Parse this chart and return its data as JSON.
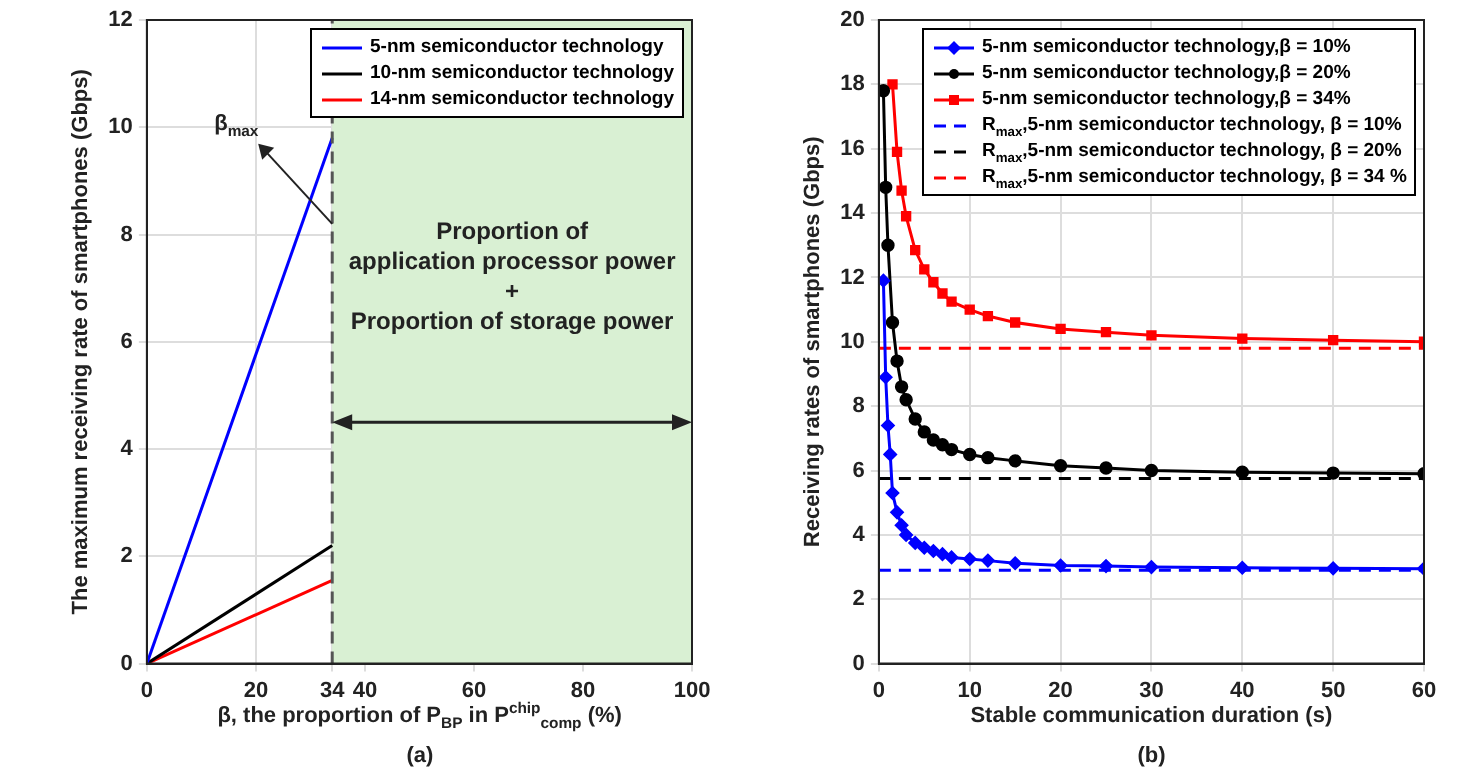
{
  "chart_data": [
    {
      "type": "line",
      "xlabel": "β, the proportion of P$_{BP}$ in P$^{chip}$$_{comp}$ (%)",
      "ylabel": "The maximum receiving rate of smartphones (Gbps)",
      "series": [
        {
          "name": "5-nm semiconductor technology",
          "color": "#0000ff",
          "x": [
            0,
            34
          ],
          "values": [
            0,
            9.8
          ]
        },
        {
          "name": "10-nm semiconductor technology",
          "color": "#000000",
          "x": [
            0,
            34
          ],
          "values": [
            0,
            2.2
          ]
        },
        {
          "name": "14-nm semiconductor technology",
          "color": "#ff0000",
          "x": [
            0,
            34
          ],
          "values": [
            0,
            1.55
          ]
        }
      ],
      "xlim": [
        0,
        100
      ],
      "xticks": [
        0,
        20,
        34,
        40,
        60,
        80,
        100
      ],
      "ylim": [
        0,
        12
      ],
      "yticks": [
        0,
        2,
        4,
        6,
        8,
        10,
        12
      ],
      "ref_lines": [
        {
          "axis": "x",
          "value": 34,
          "color": "#555555",
          "line_style": "dashed"
        }
      ],
      "bands": [
        {
          "axis": "x",
          "from": 34,
          "to": 100,
          "label": "Proportion of\napplication processor power\n+\nProportion of storage power",
          "color": "#d9f0d3"
        }
      ],
      "annotations": [
        {
          "text": "β$_{max}$",
          "x": 34,
          "y": 8.2
        },
        "(a)"
      ],
      "grid": true,
      "legend": "top right",
      "marker": "none",
      "line_style": "solid"
    },
    {
      "type": "line",
      "xlabel": "Stable communication duration (s)",
      "ylabel": "Receiving rates of smartphones (Gbps)",
      "series": [
        {
          "name": "5-nm semiconductor technology,β = 10%",
          "color": "#0000ff",
          "marker": "diamond",
          "x": [
            0.5,
            0.75,
            1,
            1.25,
            1.5,
            2,
            2.5,
            3,
            4,
            5,
            6,
            7,
            8,
            10,
            12,
            15,
            20,
            25,
            30,
            40,
            50,
            60
          ],
          "values": [
            11.9,
            8.9,
            7.4,
            6.5,
            5.3,
            4.7,
            4.3,
            4.0,
            3.75,
            3.6,
            3.5,
            3.4,
            3.3,
            3.25,
            3.2,
            3.12,
            3.05,
            3.03,
            3.0,
            2.98,
            2.96,
            2.95
          ]
        },
        {
          "name": "5-nm semiconductor technology,β = 20%",
          "color": "#000000",
          "marker": "circle",
          "x": [
            0.5,
            0.75,
            1,
            1.5,
            2,
            2.5,
            3,
            4,
            5,
            6,
            7,
            8,
            10,
            12,
            15,
            20,
            25,
            30,
            40,
            50,
            60
          ],
          "values": [
            17.8,
            14.8,
            13.0,
            10.6,
            9.4,
            8.6,
            8.2,
            7.6,
            7.2,
            6.95,
            6.8,
            6.65,
            6.5,
            6.4,
            6.3,
            6.15,
            6.08,
            6.0,
            5.95,
            5.92,
            5.9
          ]
        },
        {
          "name": "5-nm semiconductor technology,β = 34%",
          "color": "#ff0000",
          "marker": "square",
          "x": [
            1.5,
            2,
            2.5,
            3,
            4,
            5,
            6,
            7,
            8,
            10,
            12,
            15,
            20,
            25,
            30,
            40,
            50,
            60
          ],
          "values": [
            18.0,
            15.9,
            14.7,
            13.9,
            12.85,
            12.25,
            11.85,
            11.5,
            11.25,
            11.0,
            10.8,
            10.6,
            10.4,
            10.3,
            10.2,
            10.1,
            10.05,
            10.0
          ]
        },
        {
          "name": "R$_{max}$,5-nm semiconductor technology, β = 10%",
          "color": "#0000ff",
          "marker": "none",
          "line_style": "dashed",
          "x": [
            0,
            60
          ],
          "values": [
            2.9,
            2.9
          ]
        },
        {
          "name": "R$_{max}$,5-nm semiconductor technology, β = 20%",
          "color": "#000000",
          "marker": "none",
          "line_style": "dashed",
          "x": [
            0,
            60
          ],
          "values": [
            5.75,
            5.75
          ]
        },
        {
          "name": "R$_{max}$,5-nm semiconductor technology, β = 34 %",
          "color": "#ff0000",
          "marker": "none",
          "line_style": "dashed",
          "x": [
            0,
            60
          ],
          "values": [
            9.8,
            9.8
          ]
        }
      ],
      "xlim": [
        0,
        60
      ],
      "xticks": [
        0,
        10,
        20,
        30,
        40,
        50,
        60
      ],
      "ylim": [
        0,
        20
      ],
      "yticks": [
        0,
        2,
        4,
        6,
        8,
        10,
        12,
        14,
        16,
        18,
        20
      ],
      "annotations": [
        "(b)"
      ],
      "grid": true,
      "legend": "top right",
      "line_style": "solid"
    }
  ]
}
